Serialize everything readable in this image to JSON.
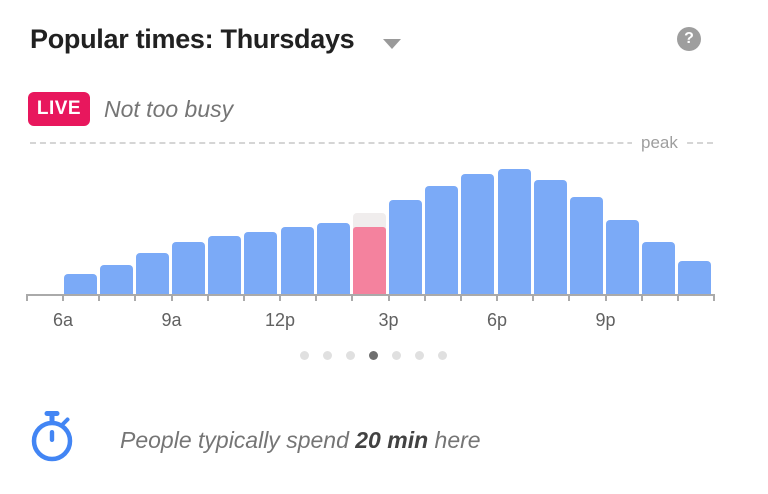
{
  "header": {
    "title": "Popular times: Thursdays",
    "help_icon": "?"
  },
  "live_status": {
    "badge": "LIVE",
    "text": "Not too busy",
    "badge_color": "#E8175D"
  },
  "chart_data": {
    "type": "bar",
    "title": "Popular times: Thursdays",
    "day": "Thursdays",
    "peak_label": "peak",
    "hours": [
      "6a",
      "7a",
      "8a",
      "9a",
      "10a",
      "11a",
      "12p",
      "1p",
      "2p",
      "3p",
      "4p",
      "5p",
      "6p",
      "7p",
      "8p",
      "9p",
      "10p",
      "11p"
    ],
    "busyness_percent_of_peak": [
      13,
      19,
      27,
      34,
      38,
      41,
      44,
      47,
      53,
      62,
      71,
      79,
      82,
      75,
      64,
      49,
      34,
      22
    ],
    "live": {
      "hour": "2p",
      "index": 8,
      "live_percent": 44,
      "historical_percent": 53
    },
    "x_tick_labels": [
      "6a",
      "9a",
      "12p",
      "3p",
      "6p",
      "9p"
    ],
    "ylim": [
      0,
      100
    ],
    "grid": "peak-dashed-line-only",
    "bar_color": "#7BAAF7",
    "live_bar_color": "#F4829E",
    "historical_overlay_color": "#F0EDED",
    "axis_color": "#AAAAAA"
  },
  "pagination": {
    "dots": 7,
    "active_index": 3
  },
  "footer": {
    "icon": "stopwatch-icon",
    "icon_color": "#4285F4",
    "text_prefix": "People typically spend ",
    "duration": "20 min",
    "text_suffix": " here"
  }
}
